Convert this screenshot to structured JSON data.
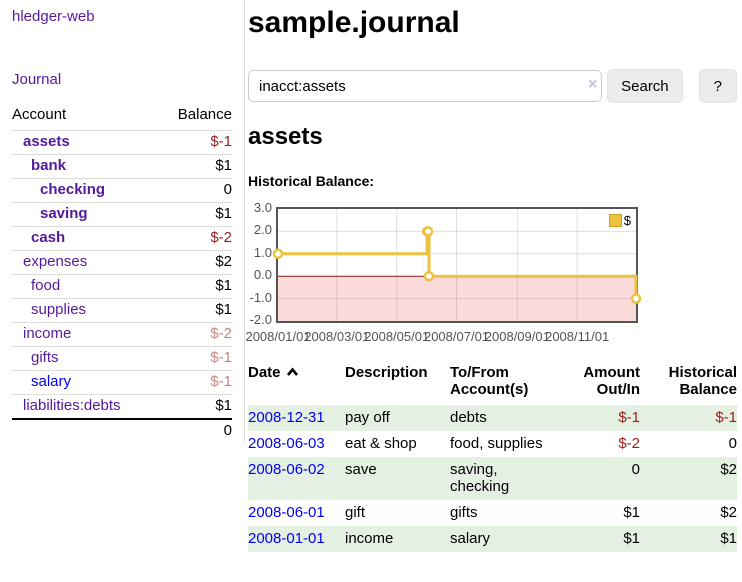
{
  "sidebar": {
    "app_title": "hledger-web",
    "journal_link": "Journal",
    "table": {
      "account_header": "Account",
      "balance_header": "Balance",
      "rows": [
        {
          "account": "assets",
          "balance": "$-1"
        },
        {
          "account": "bank",
          "balance": "$1"
        },
        {
          "account": "checking",
          "balance": "0"
        },
        {
          "account": "saving",
          "balance": "$1"
        },
        {
          "account": "cash",
          "balance": "$-2"
        },
        {
          "account": "expenses",
          "balance": "$2"
        },
        {
          "account": "food",
          "balance": "$1"
        },
        {
          "account": "supplies",
          "balance": "$1"
        },
        {
          "account": "income",
          "balance": "$-2"
        },
        {
          "account": "gifts",
          "balance": "$-1"
        },
        {
          "account": "salary",
          "balance": "$-1"
        },
        {
          "account": "liabilities:debts",
          "balance": "$1"
        }
      ],
      "total": "0"
    }
  },
  "main": {
    "title": "sample.journal",
    "search": {
      "value": "inacct:assets",
      "clear_icon": "×",
      "button_label": "Search",
      "help_button_label": "?"
    },
    "account_heading": "assets",
    "chart_heading": "Historical Balance:"
  },
  "chart_data": {
    "type": "line",
    "step": true,
    "title": "Historical Balance:",
    "x_ticks": [
      "2008/01/01",
      "2008/03/01",
      "2008/05/01",
      "2008/07/01",
      "2008/09/01",
      "2008/11/01"
    ],
    "y_ticks": [
      "3.0",
      "2.0",
      "1.0",
      "0.0",
      "-1.0",
      "-2.0"
    ],
    "xlim": [
      "2008-01-01",
      "2008-12-31"
    ],
    "ylim": [
      -2,
      3
    ],
    "grid": true,
    "negative_region_color": "#fbdada",
    "zero_line_color": "#8b1a1a",
    "legend": {
      "position": "top-right",
      "label": "$",
      "color": "#edc240"
    },
    "series": [
      {
        "name": "$",
        "color": "#edc240",
        "points": [
          {
            "date": "2008-01-01",
            "value": 1
          },
          {
            "date": "2008-06-01",
            "value": 2
          },
          {
            "date": "2008-06-02",
            "value": 2
          },
          {
            "date": "2008-06-03",
            "value": 0
          },
          {
            "date": "2008-12-31",
            "value": -1
          }
        ]
      }
    ]
  },
  "transactions": {
    "headers": {
      "date": "Date",
      "description": "Description",
      "accounts": "To/From Account(s)",
      "amount": "Amount Out/In",
      "balance": "Historical Balance"
    },
    "rows": [
      {
        "date": "2008-12-31",
        "description": "pay off",
        "accounts": "debts",
        "amount": "$-1",
        "balance": "$-1"
      },
      {
        "date": "2008-06-03",
        "description": "eat & shop",
        "accounts": "food, supplies",
        "amount": "$-2",
        "balance": "0"
      },
      {
        "date": "2008-06-02",
        "description": "save",
        "accounts": "saving, checking",
        "amount": "0",
        "balance": "$2"
      },
      {
        "date": "2008-06-01",
        "description": "gift",
        "accounts": "gifts",
        "amount": "$1",
        "balance": "$2"
      },
      {
        "date": "2008-01-01",
        "description": "income",
        "accounts": "salary",
        "amount": "$1",
        "balance": "$1"
      }
    ]
  }
}
